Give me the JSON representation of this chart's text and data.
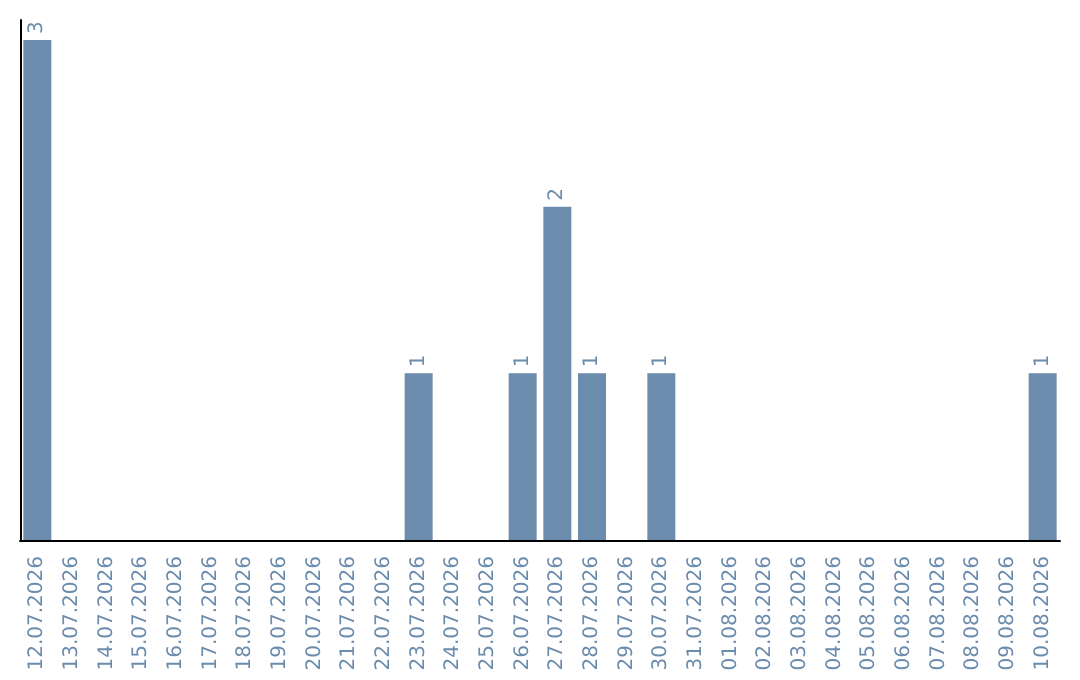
{
  "chart_data": {
    "type": "bar",
    "categories": [
      "12.07.2026",
      "13.07.2026",
      "14.07.2026",
      "15.07.2026",
      "16.07.2026",
      "17.07.2026",
      "18.07.2026",
      "19.07.2026",
      "20.07.2026",
      "21.07.2026",
      "22.07.2026",
      "23.07.2026",
      "24.07.2026",
      "25.07.2026",
      "26.07.2026",
      "27.07.2026",
      "28.07.2026",
      "29.07.2026",
      "30.07.2026",
      "31.07.2026",
      "01.08.2026",
      "02.08.2026",
      "03.08.2026",
      "04.08.2026",
      "05.08.2026",
      "06.08.2026",
      "07.08.2026",
      "08.08.2026",
      "09.08.2026",
      "10.08.2026"
    ],
    "values": [
      3,
      0,
      0,
      0,
      0,
      0,
      0,
      0,
      0,
      0,
      0,
      1,
      0,
      0,
      1,
      2,
      1,
      0,
      1,
      0,
      0,
      0,
      0,
      0,
      0,
      0,
      0,
      0,
      0,
      1
    ],
    "value_labels": [
      "3",
      null,
      null,
      null,
      null,
      null,
      null,
      null,
      null,
      null,
      null,
      "1",
      null,
      null,
      "1",
      "2",
      "1",
      null,
      "1",
      null,
      null,
      null,
      null,
      null,
      null,
      null,
      null,
      null,
      null,
      "1"
    ],
    "color": "#6b8cad",
    "tick_labels": "x"
  }
}
